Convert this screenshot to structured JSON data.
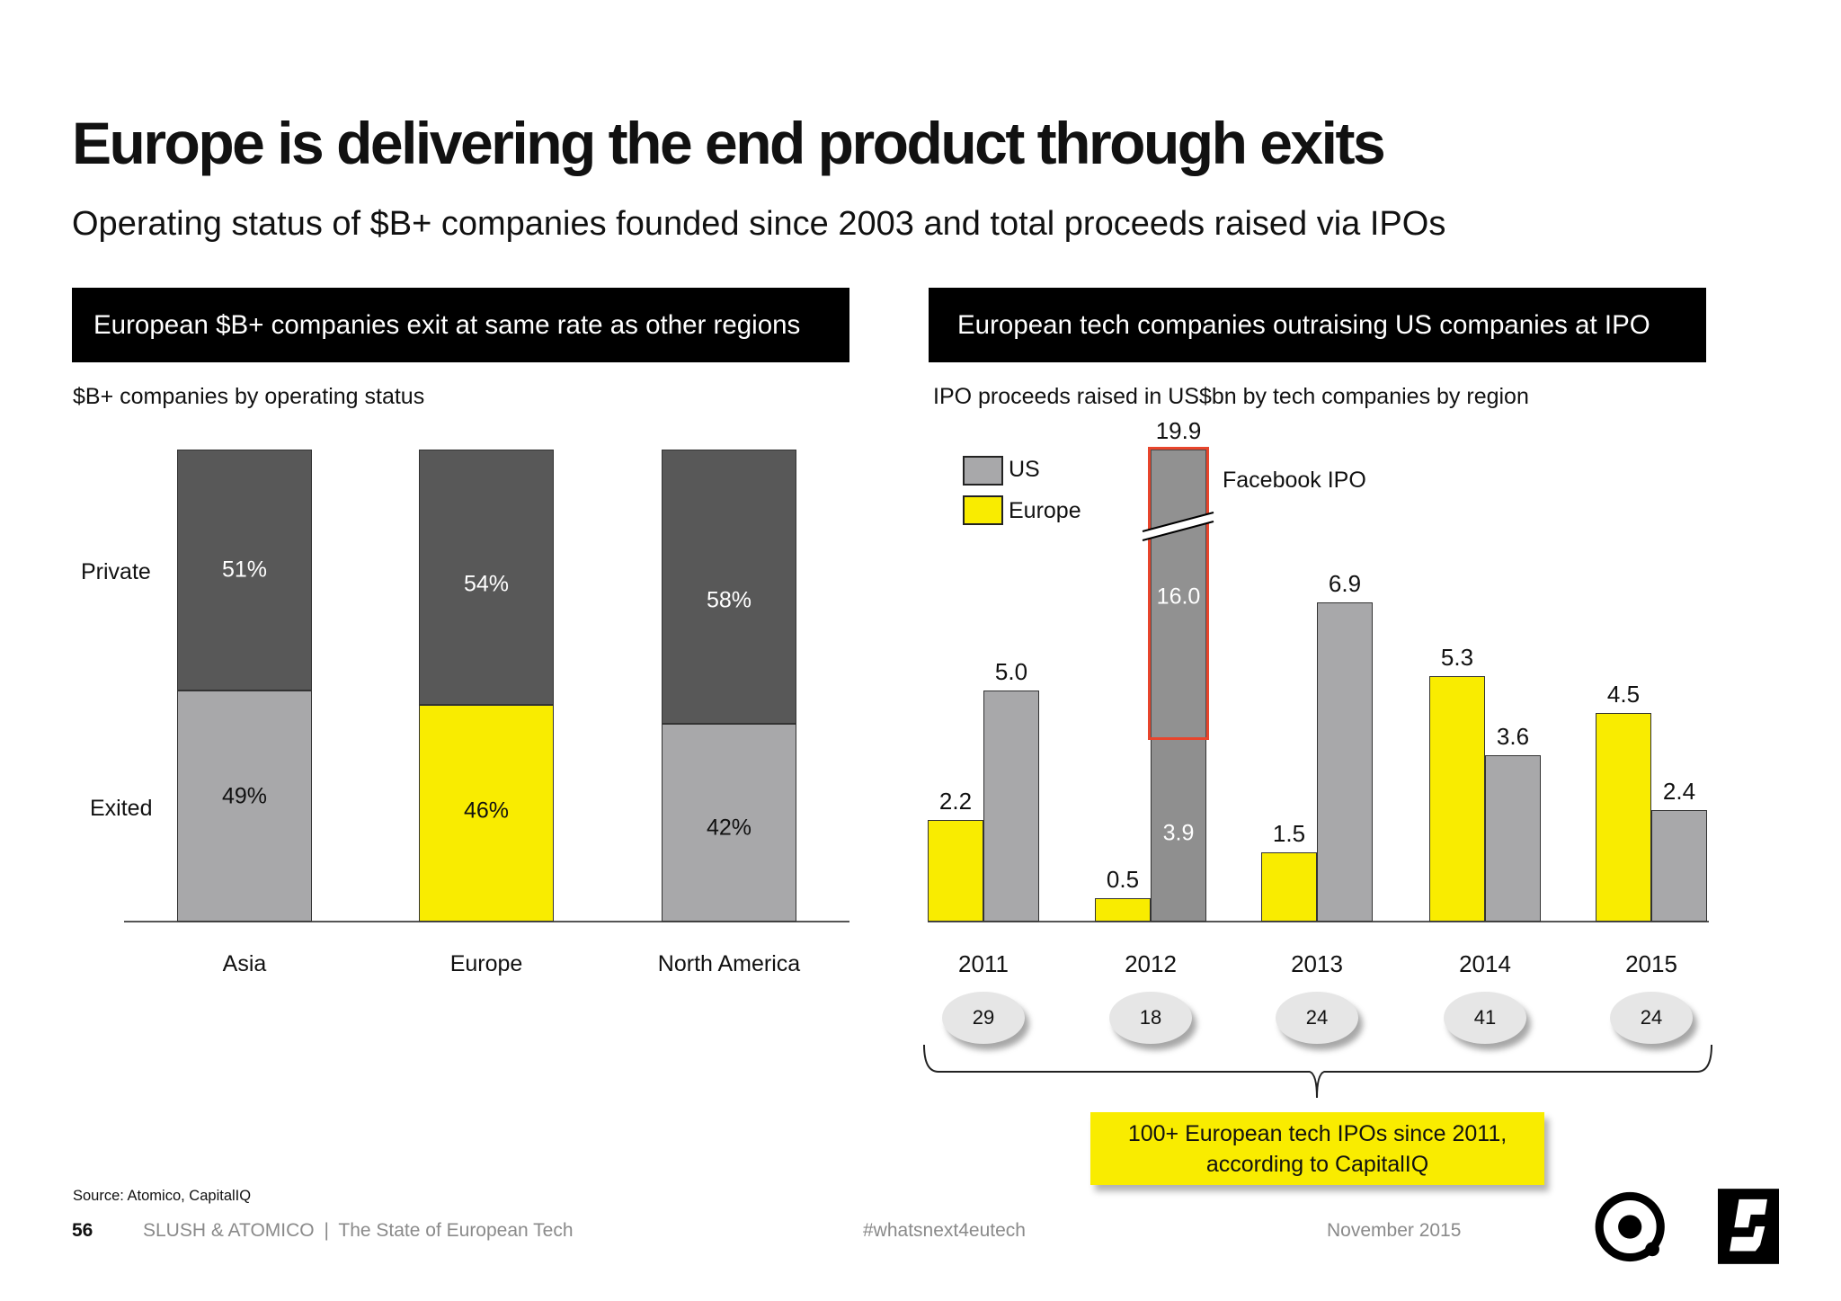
{
  "title": "Europe is delivering the end product through exits",
  "subtitle": "Operating status of $B+ companies founded since 2003 and total proceeds raised via IPOs",
  "colors": {
    "private": "#585858",
    "exited": "#a8a8aa",
    "europe": "#f9ec00",
    "us": "#a8a8aa",
    "us_2012": "#8f8f8f",
    "highlight": "#e8452c",
    "banner": "#000000"
  },
  "left_panel": {
    "banner": "European $B+ companies exit at same rate as other regions"
  },
  "right_panel": {
    "banner": "European tech companies outraising US companies at IPO"
  },
  "chart_data": [
    {
      "type": "bar",
      "stacked": true,
      "title": "$B+ companies by operating status",
      "categories": [
        "Asia",
        "Europe",
        "North America"
      ],
      "series": [
        {
          "name": "Exited",
          "values": [
            49,
            46,
            42
          ],
          "labels": [
            "49%",
            "46%",
            "42%"
          ]
        },
        {
          "name": "Private",
          "values": [
            51,
            54,
            58
          ],
          "labels": [
            "51%",
            "54%",
            "58%"
          ]
        }
      ],
      "highlight_category": "Europe",
      "ylim": [
        0,
        100
      ]
    },
    {
      "type": "bar",
      "title": "IPO proceeds raised in US$bn by tech companies by region",
      "categories": [
        "2011",
        "2012",
        "2013",
        "2014",
        "2015"
      ],
      "series": [
        {
          "name": "Europe",
          "values": [
            2.2,
            0.5,
            1.5,
            5.3,
            4.5
          ],
          "labels": [
            "2.2",
            "0.5",
            "1.5",
            "5.3",
            "4.5"
          ]
        },
        {
          "name": "US",
          "values": [
            5.0,
            19.9,
            6.9,
            3.6,
            2.4
          ],
          "labels": [
            "5.0",
            "19.9",
            "6.9",
            "3.6",
            "2.4"
          ]
        }
      ],
      "us_2012_breakdown": {
        "facebook_ipo": 16.0,
        "other": 3.9,
        "labels": [
          "16.0",
          "3.9"
        ]
      },
      "axis_break": {
        "category": "2012",
        "series": "US"
      },
      "annotation": "Facebook IPO",
      "ipo_counts": [
        "29",
        "18",
        "24",
        "41",
        "24"
      ],
      "legend_position": "top-left"
    }
  ],
  "callout": {
    "line1": "100+ European tech IPOs since 2011,",
    "line2": "according to CapitalIQ"
  },
  "source": "Source: Atomico, CapitalIQ",
  "footer": {
    "page": "56",
    "brand": "SLUSH & ATOMICO",
    "separator": "|",
    "report": "The State of European Tech",
    "hashtag": "#whatsnext4eutech",
    "date": "November 2015"
  },
  "logos": {
    "atomico": "atomico-logo",
    "slush": "slush-logo"
  }
}
